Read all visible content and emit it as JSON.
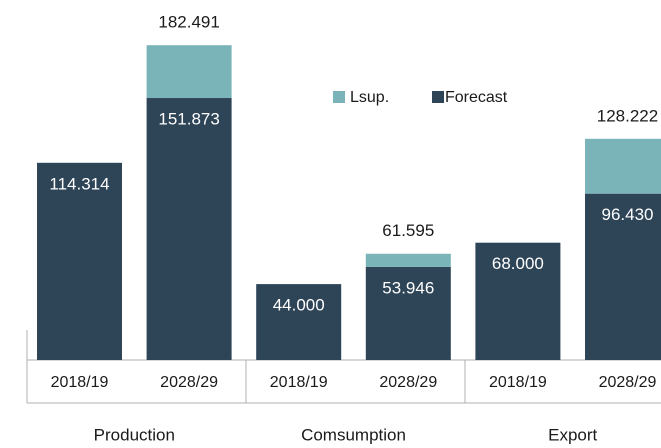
{
  "chart_data": {
    "type": "bar",
    "stacked": true,
    "categories": [
      "2018/19",
      "2028/29",
      "2018/19",
      "2028/29",
      "2018/19",
      "2028/29"
    ],
    "groups": [
      "Production",
      "Comsumption",
      "Export"
    ],
    "series": [
      {
        "name": "Forecast",
        "color": "#2e4457",
        "values": [
          114.314,
          151.873,
          44,
          53.946,
          68,
          96.43
        ],
        "value_labels": [
          "114.314",
          "151.873",
          "44.000",
          "53.946",
          "68.000",
          "96.430"
        ]
      },
      {
        "name": "Lsup.",
        "color": "#7ab3b8",
        "values": [
          null,
          30.618,
          null,
          7.649,
          null,
          31.792
        ]
      }
    ],
    "totals": [
      null,
      182.491,
      null,
      61.595,
      null,
      128.222
    ],
    "ylim": [
      0,
      200
    ]
  }
}
